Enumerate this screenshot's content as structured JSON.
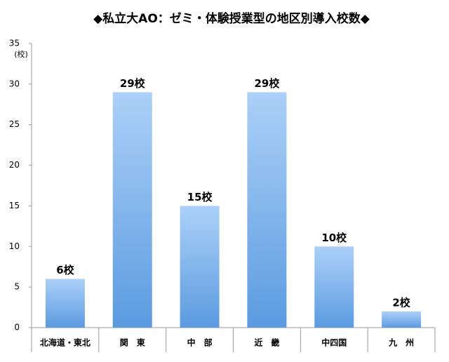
{
  "chart_data": {
    "type": "bar",
    "title": "◆私立大AO：ゼミ・体験授業型の地区別導入校数◆",
    "y_unit": "(校)",
    "categories": [
      "北海道・東北",
      "関　東",
      "中　部",
      "近　畿",
      "中四国",
      "九　州"
    ],
    "values": [
      6,
      29,
      15,
      29,
      10,
      2
    ],
    "value_labels": [
      "6校",
      "29校",
      "15校",
      "29校",
      "10校",
      "2校"
    ],
    "color": "#5b9be0",
    "ylim": [
      0,
      35
    ],
    "yticks": [
      0,
      5,
      10,
      15,
      20,
      25,
      30,
      35
    ],
    "grid": false
  }
}
